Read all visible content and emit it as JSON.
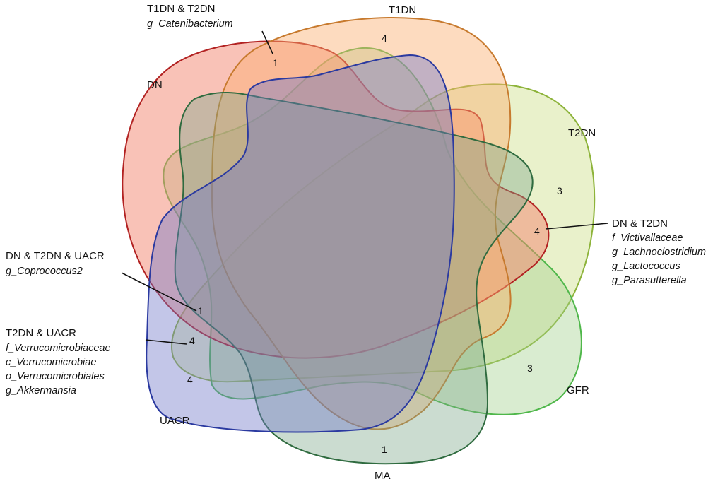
{
  "sets": [
    {
      "key": "dn",
      "label": "DN",
      "stroke": "#b22222",
      "fill": "#f4866f"
    },
    {
      "key": "t1dn",
      "label": "T1DN",
      "stroke": "#c77a2e",
      "fill": "#fbb072"
    },
    {
      "key": "t2dn",
      "label": "T2DN",
      "stroke": "#8db33a",
      "fill": "#cfe08c"
    },
    {
      "key": "gfr",
      "label": "GFR",
      "stroke": "#4fb74a",
      "fill": "#9fcf8a"
    },
    {
      "key": "ma",
      "label": "MA",
      "stroke": "#2f6b3f",
      "fill": "#7da88a"
    },
    {
      "key": "uacr",
      "label": "UACR",
      "stroke": "#2b3aa0",
      "fill": "#6f78c9"
    }
  ],
  "counts": {
    "t1dn_only": "4",
    "t2dn_only": "3",
    "gfr_only": "3",
    "ma_only": "1",
    "uacr_only": "4",
    "t1dn_t2dn": "1",
    "dn_t2dn": "4",
    "dn_t2dn_uacr": "1",
    "t2dn_uacr": "4"
  },
  "annotations": {
    "t1dn_t2dn": {
      "title": "T1DN & T2DN",
      "lines": [
        "g_Catenibacterium"
      ]
    },
    "dn_t2dn": {
      "title": "DN & T2DN",
      "lines": [
        "f_Victivallaceae",
        "g_Lachnoclostridium",
        "g_Lactococcus",
        "g_Parasutterella"
      ]
    },
    "dn_t2dn_uacr": {
      "title": "DN & T2DN & UACR",
      "lines": [
        "g_Coprococcus2"
      ]
    },
    "t2dn_uacr": {
      "title": "T2DN & UACR",
      "lines": [
        "f_Verrucomicrobiaceae",
        "c_Verrucomicrobiae",
        "o_Verrucomicrobiales",
        "g_Akkermansia"
      ]
    }
  }
}
